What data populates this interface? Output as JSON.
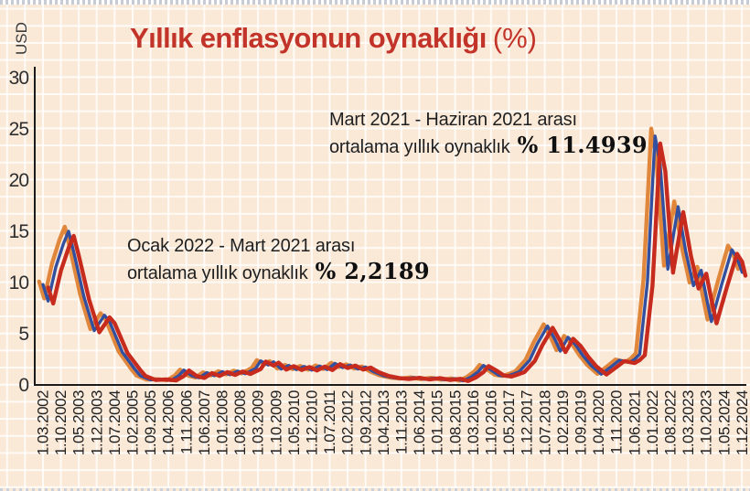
{
  "header": {
    "title": "Yıllık enflasyonun oynaklığı",
    "unit_suffix": "(%)"
  },
  "y_axis": {
    "unit_label": "USD",
    "ticks": [
      "30",
      "25",
      "20",
      "15",
      "10",
      "5",
      "0"
    ]
  },
  "x_axis": {
    "ticks": [
      "1.03.2002",
      "1.10.2002",
      "1.05.2003",
      "1.12.2003",
      "1.07.2004",
      "1.02.2005",
      "1.09.2005",
      "1.04.2006",
      "1.11.2006",
      "1.06.2007",
      "1.01.2008",
      "1.08.2008",
      "1.03.2009",
      "1.10.2009",
      "1.05.2010",
      "1.12.2010",
      "1.07.2011",
      "1.02.2012",
      "1.09.2012",
      "1.04.2013",
      "1.11.2013",
      "1.06.2014",
      "1.01.2015",
      "1.08.2015",
      "1.03.2016",
      "1.10.2016",
      "1.05.2017",
      "1.12.2017",
      "1.07.2018",
      "1.02.2019",
      "1.09.2019",
      "1.04.2020",
      "1.11.2020",
      "1.06.2021",
      "1.01.2022",
      "1.08.2022",
      "1.03.2023",
      "1.10.2023",
      "1.05.2024",
      "1.12.2024"
    ]
  },
  "annotations": {
    "first": {
      "line1": "Mart 2021 - Haziran 2021 arası",
      "line2": "ortalama yıllık oynaklık",
      "value": "% 11.4939"
    },
    "second": {
      "line1": "Ocak 2022 - Mart 2021 arası",
      "line2": "ortalama yıllık oynaklık",
      "value": "% 2,2189"
    }
  },
  "colors": {
    "background": "#fbe9d8",
    "grid": "#ffffff",
    "title": "#c2342a",
    "axis": "#1b1b1b",
    "line_orange": "#e0873c",
    "line_blue": "#32509f",
    "line_red": "#c62b1d"
  },
  "chart_data": {
    "type": "line",
    "title": "Yıllık enflasyonun oynaklığı (%)",
    "ylabel": "USD",
    "xlabel": "",
    "ylim": [
      0,
      30
    ],
    "y_ticks": [
      30,
      25,
      20,
      15,
      10,
      5,
      0
    ],
    "grid": true,
    "legend": "none",
    "x_unit": "monthly dates from 1.03.2002 to 1.12.2024 (m = months since 1.03.2002), axis labeled every 7 months",
    "x_tick_labels": [
      "1.03.2002",
      "1.10.2002",
      "1.05.2003",
      "1.12.2003",
      "1.07.2004",
      "1.02.2005",
      "1.09.2005",
      "1.04.2006",
      "1.11.2006",
      "1.06.2007",
      "1.01.2008",
      "1.08.2008",
      "1.03.2009",
      "1.10.2009",
      "1.05.2010",
      "1.12.2010",
      "1.07.2011",
      "1.02.2012",
      "1.09.2012",
      "1.04.2013",
      "1.11.2013",
      "1.06.2014",
      "1.01.2015",
      "1.08.2015",
      "1.03.2016",
      "1.10.2016",
      "1.05.2017",
      "1.12.2017",
      "1.07.2018",
      "1.02.2019",
      "1.09.2019",
      "1.04.2020",
      "1.11.2020",
      "1.06.2021",
      "1.01.2022",
      "1.08.2022",
      "1.03.2023",
      "1.10.2023",
      "1.05.2024",
      "1.12.2024"
    ],
    "base_series_points": [
      [
        0,
        9.8
      ],
      [
        2,
        8.2
      ],
      [
        5,
        11.5
      ],
      [
        8,
        13.8
      ],
      [
        10,
        15.0
      ],
      [
        12,
        13.0
      ],
      [
        16,
        8.6
      ],
      [
        20,
        5.3
      ],
      [
        24,
        6.8
      ],
      [
        26,
        6.2
      ],
      [
        31,
        3.2
      ],
      [
        36,
        1.5
      ],
      [
        38,
        0.9
      ],
      [
        42,
        0.5
      ],
      [
        46,
        0.55
      ],
      [
        50,
        0.45
      ],
      [
        53,
        0.9
      ],
      [
        55,
        1.45
      ],
      [
        58,
        0.9
      ],
      [
        61,
        0.7
      ],
      [
        64,
        1.2
      ],
      [
        67,
        0.9
      ],
      [
        70,
        1.3
      ],
      [
        73,
        1.0
      ],
      [
        76,
        1.35
      ],
      [
        79,
        1.1
      ],
      [
        83,
        1.6
      ],
      [
        85,
        2.35
      ],
      [
        88,
        1.95
      ],
      [
        90,
        2.25
      ],
      [
        93,
        1.55
      ],
      [
        96,
        1.9
      ],
      [
        99,
        1.5
      ],
      [
        102,
        1.8
      ],
      [
        105,
        1.45
      ],
      [
        108,
        1.85
      ],
      [
        111,
        1.5
      ],
      [
        114,
        2.1
      ],
      [
        117,
        1.7
      ],
      [
        120,
        1.95
      ],
      [
        123,
        1.55
      ],
      [
        126,
        1.75
      ],
      [
        129,
        1.3
      ],
      [
        133,
        0.9
      ],
      [
        137,
        0.7
      ],
      [
        141,
        0.6
      ],
      [
        145,
        0.72
      ],
      [
        149,
        0.55
      ],
      [
        153,
        0.68
      ],
      [
        157,
        0.5
      ],
      [
        161,
        0.62
      ],
      [
        164,
        0.4
      ],
      [
        167,
        0.75
      ],
      [
        170,
        1.3
      ],
      [
        172,
        1.9
      ],
      [
        175,
        1.45
      ],
      [
        178,
        0.95
      ],
      [
        181,
        0.85
      ],
      [
        184,
        1.1
      ],
      [
        186,
        1.3
      ],
      [
        190,
        2.4
      ],
      [
        193,
        4.0
      ],
      [
        197,
        5.75
      ],
      [
        200,
        4.4
      ],
      [
        202,
        3.3
      ],
      [
        205,
        4.65
      ],
      [
        208,
        3.9
      ],
      [
        211,
        2.8
      ],
      [
        214,
        1.9
      ],
      [
        218,
        1.05
      ],
      [
        222,
        1.8
      ],
      [
        225,
        2.4
      ],
      [
        229,
        2.2
      ],
      [
        231,
        2.5
      ],
      [
        233,
        3.0
      ],
      [
        236,
        10.0
      ],
      [
        239,
        24.3
      ],
      [
        241,
        21.5
      ],
      [
        244,
        11.3
      ],
      [
        248,
        17.4
      ],
      [
        251,
        13.0
      ],
      [
        254,
        9.7
      ],
      [
        257,
        11.2
      ],
      [
        259,
        8.6
      ],
      [
        261,
        6.2
      ],
      [
        265,
        9.8
      ],
      [
        269,
        13.2
      ],
      [
        271,
        12.4
      ],
      [
        273,
        11.0
      ]
    ],
    "series": [
      {
        "name": "orange",
        "color": "#e0873c",
        "offset_months": -1.5,
        "scale": 1.03,
        "width": 4.4
      },
      {
        "name": "blue",
        "color": "#32509f",
        "offset_months": 0,
        "scale": 1.0,
        "width": 3.4
      },
      {
        "name": "red",
        "color": "#c62b1d",
        "offset_months": 2,
        "scale": 0.97,
        "width": 4.4
      }
    ],
    "annotations_text": [
      "Mart 2021 - Haziran 2021 arası ortalama yıllık oynaklık % 11.4939",
      "Ocak 2022 - Mart 2021 arası ortalama yıllık oynaklık % 2,2189"
    ]
  }
}
